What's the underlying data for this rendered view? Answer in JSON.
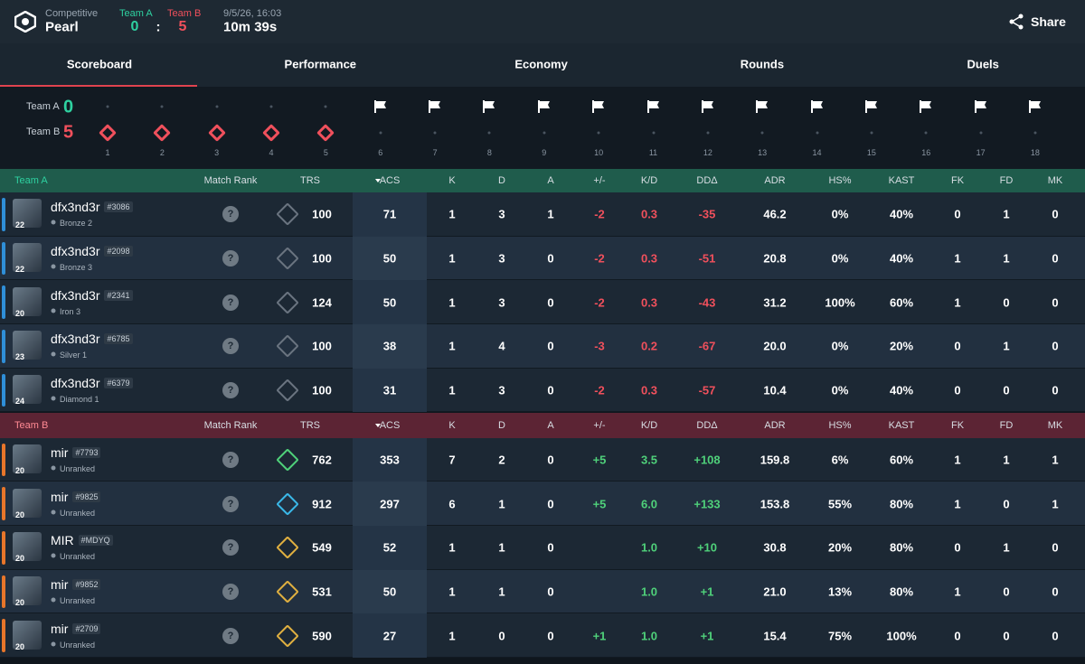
{
  "header": {
    "mode": "Competitive",
    "map": "Pearl",
    "team_a": {
      "label": "Team A",
      "score": "0"
    },
    "separator": ":",
    "team_b": {
      "label": "Team B",
      "score": "5"
    },
    "date": "9/5/26, 16:03",
    "duration": "10m 39s",
    "share": "Share"
  },
  "tabs": [
    "Scoreboard",
    "Performance",
    "Economy",
    "Rounds",
    "Duels"
  ],
  "rounds": {
    "team_a": {
      "label": "Team A",
      "score": "0"
    },
    "team_b": {
      "label": "Team B",
      "score": "5"
    },
    "numbers": [
      "1",
      "2",
      "3",
      "4",
      "5",
      "6",
      "7",
      "8",
      "9",
      "10",
      "11",
      "12",
      "13",
      "14",
      "15",
      "16",
      "17",
      "18"
    ]
  },
  "columns": [
    "Match Rank",
    "TRS",
    "ACS",
    "K",
    "D",
    "A",
    "+/-",
    "K/D",
    "DDΔ",
    "ADR",
    "HS%",
    "KAST",
    "FK",
    "FD",
    "MK"
  ],
  "teams": [
    {
      "label": "Team A",
      "players": [
        {
          "name": "dfx3nd3r",
          "tag": "#3086",
          "rank": "Bronze 2",
          "level": "22",
          "match_rank": "?",
          "trs": "100",
          "acs": "71",
          "k": "1",
          "d": "3",
          "a": "1",
          "pm": "-2",
          "kd": "0.3",
          "dd": "-35",
          "adr": "46.2",
          "hs": "0%",
          "kast": "40%",
          "fk": "0",
          "fd": "1",
          "mk": "0"
        },
        {
          "name": "dfx3nd3r",
          "tag": "#2098",
          "rank": "Bronze 3",
          "level": "22",
          "match_rank": "?",
          "trs": "100",
          "acs": "50",
          "k": "1",
          "d": "3",
          "a": "0",
          "pm": "-2",
          "kd": "0.3",
          "dd": "-51",
          "adr": "20.8",
          "hs": "0%",
          "kast": "40%",
          "fk": "1",
          "fd": "1",
          "mk": "0"
        },
        {
          "name": "dfx3nd3r",
          "tag": "#2341",
          "rank": "Iron 3",
          "level": "20",
          "match_rank": "?",
          "trs": "124",
          "acs": "50",
          "k": "1",
          "d": "3",
          "a": "0",
          "pm": "-2",
          "kd": "0.3",
          "dd": "-43",
          "adr": "31.2",
          "hs": "100%",
          "kast": "60%",
          "fk": "1",
          "fd": "0",
          "mk": "0"
        },
        {
          "name": "dfx3nd3r",
          "tag": "#6785",
          "rank": "Silver 1",
          "level": "23",
          "match_rank": "?",
          "trs": "100",
          "acs": "38",
          "k": "1",
          "d": "4",
          "a": "0",
          "pm": "-3",
          "kd": "0.2",
          "dd": "-67",
          "adr": "20.0",
          "hs": "0%",
          "kast": "20%",
          "fk": "0",
          "fd": "1",
          "mk": "0"
        },
        {
          "name": "dfx3nd3r",
          "tag": "#6379",
          "rank": "Diamond 1",
          "level": "24",
          "match_rank": "?",
          "trs": "100",
          "acs": "31",
          "k": "1",
          "d": "3",
          "a": "0",
          "pm": "-2",
          "kd": "0.3",
          "dd": "-57",
          "adr": "10.4",
          "hs": "0%",
          "kast": "40%",
          "fk": "0",
          "fd": "0",
          "mk": "0"
        }
      ]
    },
    {
      "label": "Team B",
      "players": [
        {
          "name": "mir",
          "tag": "#7793",
          "rank": "Unranked",
          "level": "20",
          "match_rank": "?",
          "trs": "762",
          "acs": "353",
          "k": "7",
          "d": "2",
          "a": "0",
          "pm": "+5",
          "kd": "3.5",
          "dd": "+108",
          "adr": "159.8",
          "hs": "6%",
          "kast": "60%",
          "fk": "1",
          "fd": "1",
          "mk": "1"
        },
        {
          "name": "mir",
          "tag": "#9825",
          "rank": "Unranked",
          "level": "20",
          "match_rank": "?",
          "trs": "912",
          "acs": "297",
          "k": "6",
          "d": "1",
          "a": "0",
          "pm": "+5",
          "kd": "6.0",
          "dd": "+133",
          "adr": "153.8",
          "hs": "55%",
          "kast": "80%",
          "fk": "1",
          "fd": "0",
          "mk": "1"
        },
        {
          "name": "MIR",
          "tag": "#MDYQ",
          "rank": "Unranked",
          "level": "20",
          "match_rank": "?",
          "trs": "549",
          "acs": "52",
          "k": "1",
          "d": "1",
          "a": "0",
          "kd": "1.0",
          "dd": "+10",
          "adr": "30.8",
          "hs": "20%",
          "kast": "80%",
          "fk": "0",
          "fd": "1",
          "mk": "0"
        },
        {
          "name": "mir",
          "tag": "#9852",
          "rank": "Unranked",
          "level": "20",
          "match_rank": "?",
          "trs": "531",
          "acs": "50",
          "k": "1",
          "d": "1",
          "a": "0",
          "kd": "1.0",
          "dd": "+1",
          "adr": "21.0",
          "hs": "13%",
          "kast": "80%",
          "fk": "1",
          "fd": "0",
          "mk": "0"
        },
        {
          "name": "mir",
          "tag": "#2709",
          "rank": "Unranked",
          "level": "20",
          "match_rank": "?",
          "trs": "590",
          "acs": "27",
          "k": "1",
          "d": "0",
          "a": "0",
          "pm": "+1",
          "kd": "1.0",
          "dd": "+1",
          "adr": "15.4",
          "hs": "75%",
          "kast": "100%",
          "fk": "0",
          "fd": "0",
          "mk": "0"
        }
      ]
    }
  ]
}
